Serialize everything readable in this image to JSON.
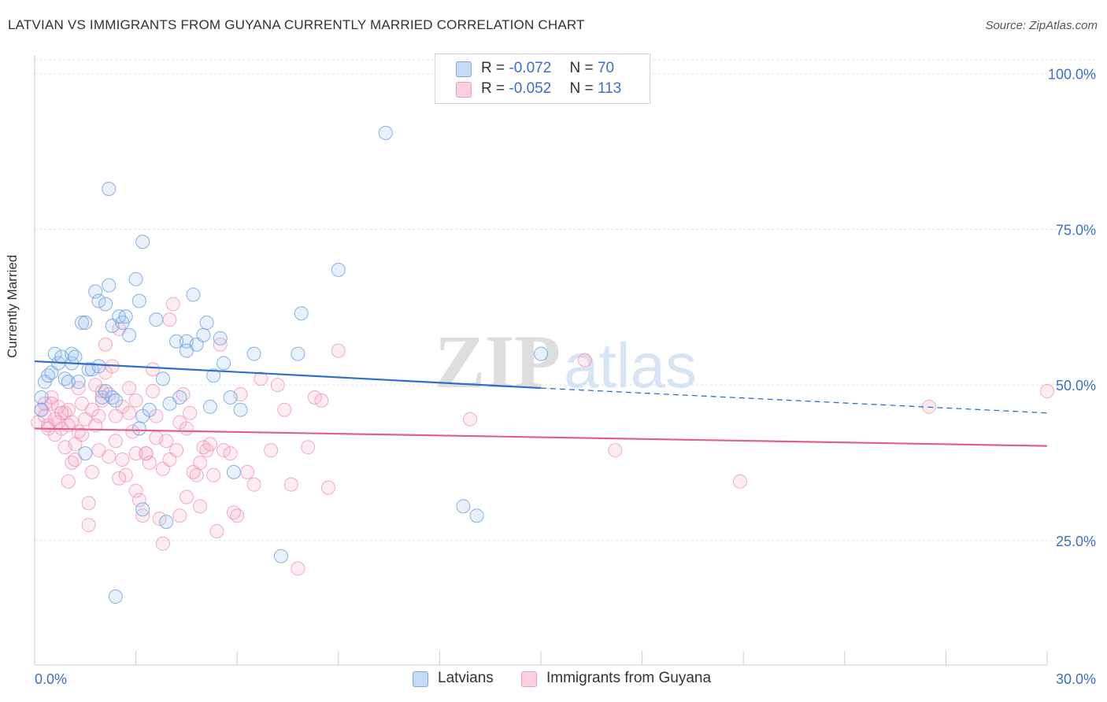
{
  "title": "LATVIAN VS IMMIGRANTS FROM GUYANA CURRENTLY MARRIED CORRELATION CHART",
  "source": "Source: ZipAtlas.com",
  "watermark": {
    "zip": "ZIP",
    "atlas": "atlas"
  },
  "legend": {
    "r_label": "R =",
    "n_label": "N =",
    "rows": [
      {
        "r": "-0.072",
        "n": "70",
        "color": "#a9c8ef"
      },
      {
        "r": "-0.052",
        "n": "113",
        "color": "#f7b8cc"
      }
    ]
  },
  "bottom_legend": {
    "latvians": "Latvians",
    "guyana": "Immigrants from Guyana"
  },
  "chart_data": {
    "type": "scatter",
    "title": "LATVIAN VS IMMIGRANTS FROM GUYANA CURRENTLY MARRIED CORRELATION CHART",
    "xlabel": "",
    "ylabel": "Currently Married",
    "xlim": [
      0,
      30
    ],
    "ylim": [
      5,
      103
    ],
    "x_tick_labels": [
      "0.0%",
      "30.0%"
    ],
    "y_tick_labels": [
      "25.0%",
      "50.0%",
      "75.0%",
      "100.0%"
    ],
    "y_ticks": [
      25,
      50,
      75,
      100
    ],
    "grid": true,
    "colors": {
      "latvians": "#6a9fe0",
      "guyana": "#f08fb0",
      "latvians_line": "#2f6fcb",
      "guyana_line": "#e0608a"
    },
    "series": [
      {
        "name": "Latvians",
        "trend": {
          "x0": 0,
          "y0": 53.8,
          "x1": 15,
          "y1": 49.5,
          "dash_x1": 30,
          "dash_y1": 45.5
        },
        "points": [
          [
            0.2,
            48.0
          ],
          [
            0.3,
            50.5
          ],
          [
            0.4,
            51.5
          ],
          [
            0.5,
            52.0
          ],
          [
            0.6,
            55.0
          ],
          [
            0.7,
            53.5
          ],
          [
            0.8,
            54.5
          ],
          [
            0.9,
            51.0
          ],
          [
            1.0,
            50.5
          ],
          [
            1.1,
            53.5
          ],
          [
            1.1,
            55.0
          ],
          [
            1.2,
            54.5
          ],
          [
            1.3,
            50.5
          ],
          [
            1.4,
            60.0
          ],
          [
            1.5,
            60.0
          ],
          [
            1.6,
            52.5
          ],
          [
            1.7,
            52.5
          ],
          [
            1.8,
            65.0
          ],
          [
            1.9,
            63.5
          ],
          [
            1.9,
            53.0
          ],
          [
            2.0,
            48.0
          ],
          [
            2.1,
            49.0
          ],
          [
            2.1,
            63.0
          ],
          [
            2.2,
            66.0
          ],
          [
            2.3,
            59.5
          ],
          [
            2.3,
            48.0
          ],
          [
            2.4,
            47.5
          ],
          [
            2.5,
            61.0
          ],
          [
            2.6,
            60.0
          ],
          [
            2.7,
            61.0
          ],
          [
            2.8,
            58.0
          ],
          [
            3.0,
            67.0
          ],
          [
            3.1,
            63.5
          ],
          [
            3.2,
            45.0
          ],
          [
            3.2,
            73.0
          ],
          [
            3.4,
            46.0
          ],
          [
            3.6,
            60.5
          ],
          [
            3.8,
            51.0
          ],
          [
            3.9,
            28.0
          ],
          [
            4.0,
            47.0
          ],
          [
            4.2,
            57.0
          ],
          [
            4.3,
            48.0
          ],
          [
            4.5,
            57.0
          ],
          [
            4.7,
            64.5
          ],
          [
            4.8,
            56.5
          ],
          [
            5.0,
            58.0
          ],
          [
            5.1,
            60.0
          ],
          [
            5.2,
            46.5
          ],
          [
            5.3,
            51.5
          ],
          [
            5.5,
            57.5
          ],
          [
            5.6,
            53.5
          ],
          [
            5.8,
            48.0
          ],
          [
            5.9,
            36.0
          ],
          [
            6.1,
            46.0
          ],
          [
            6.5,
            55.0
          ],
          [
            7.3,
            22.5
          ],
          [
            7.8,
            55.0
          ],
          [
            7.9,
            61.5
          ],
          [
            9.0,
            68.5
          ],
          [
            10.4,
            90.5
          ],
          [
            12.7,
            30.5
          ],
          [
            13.1,
            29.0
          ],
          [
            15.0,
            55.0
          ],
          [
            2.2,
            81.5
          ],
          [
            2.4,
            16.0
          ],
          [
            3.1,
            43.0
          ],
          [
            1.5,
            39.0
          ],
          [
            0.2,
            46.0
          ],
          [
            3.2,
            30.0
          ],
          [
            4.5,
            55.5
          ]
        ]
      },
      {
        "name": "Immigrants from Guyana",
        "trend": {
          "x0": 0,
          "y0": 43.0,
          "x1": 30,
          "y1": 40.2
        },
        "points": [
          [
            0.1,
            44.0
          ],
          [
            0.2,
            46.0
          ],
          [
            0.3,
            45.0
          ],
          [
            0.4,
            43.5
          ],
          [
            0.5,
            48.0
          ],
          [
            0.6,
            44.5
          ],
          [
            0.7,
            44.0
          ],
          [
            0.8,
            43.0
          ],
          [
            0.9,
            45.5
          ],
          [
            1.0,
            46.0
          ],
          [
            1.0,
            34.5
          ],
          [
            1.1,
            37.5
          ],
          [
            1.2,
            40.5
          ],
          [
            1.3,
            42.5
          ],
          [
            1.4,
            47.0
          ],
          [
            1.5,
            44.5
          ],
          [
            1.6,
            31.0
          ],
          [
            1.6,
            27.5
          ],
          [
            1.7,
            36.0
          ],
          [
            1.8,
            43.5
          ],
          [
            1.9,
            39.5
          ],
          [
            2.0,
            49.0
          ],
          [
            2.1,
            52.0
          ],
          [
            2.2,
            48.5
          ],
          [
            2.3,
            53.0
          ],
          [
            2.4,
            41.0
          ],
          [
            2.5,
            35.0
          ],
          [
            2.6,
            38.0
          ],
          [
            2.7,
            35.5
          ],
          [
            2.8,
            49.5
          ],
          [
            2.9,
            42.5
          ],
          [
            3.0,
            47.5
          ],
          [
            3.1,
            31.5
          ],
          [
            3.2,
            29.0
          ],
          [
            3.3,
            39.0
          ],
          [
            3.4,
            37.5
          ],
          [
            3.5,
            52.5
          ],
          [
            3.6,
            45.0
          ],
          [
            3.7,
            28.5
          ],
          [
            3.8,
            36.5
          ],
          [
            3.9,
            41.0
          ],
          [
            4.0,
            38.0
          ],
          [
            4.1,
            63.0
          ],
          [
            4.2,
            39.5
          ],
          [
            4.3,
            29.0
          ],
          [
            4.4,
            48.5
          ],
          [
            4.5,
            32.0
          ],
          [
            4.6,
            45.5
          ],
          [
            4.8,
            35.5
          ],
          [
            4.9,
            37.5
          ],
          [
            5.0,
            40.0
          ],
          [
            5.1,
            39.5
          ],
          [
            5.3,
            35.5
          ],
          [
            5.4,
            26.5
          ],
          [
            5.5,
            56.5
          ],
          [
            5.6,
            39.5
          ],
          [
            5.8,
            39.0
          ],
          [
            5.9,
            29.5
          ],
          [
            6.1,
            48.5
          ],
          [
            6.3,
            36.0
          ],
          [
            6.5,
            34.0
          ],
          [
            6.7,
            51.0
          ],
          [
            7.0,
            39.5
          ],
          [
            7.2,
            50.0
          ],
          [
            7.4,
            46.0
          ],
          [
            7.6,
            34.0
          ],
          [
            7.8,
            20.5
          ],
          [
            8.1,
            40.0
          ],
          [
            8.3,
            48.0
          ],
          [
            8.5,
            47.5
          ],
          [
            8.7,
            33.5
          ],
          [
            9.0,
            55.5
          ],
          [
            12.9,
            44.5
          ],
          [
            16.3,
            54.0
          ],
          [
            17.2,
            39.5
          ],
          [
            20.9,
            34.5
          ],
          [
            26.5,
            46.5
          ],
          [
            30.0,
            49.0
          ],
          [
            0.3,
            47.0
          ],
          [
            0.6,
            42.0
          ],
          [
            1.2,
            38.0
          ],
          [
            1.9,
            45.0
          ],
          [
            2.6,
            46.5
          ],
          [
            3.0,
            33.0
          ],
          [
            3.5,
            49.0
          ],
          [
            4.3,
            44.0
          ],
          [
            4.7,
            36.0
          ],
          [
            5.2,
            40.5
          ],
          [
            0.9,
            40.0
          ],
          [
            1.4,
            42.0
          ],
          [
            2.0,
            47.5
          ],
          [
            2.4,
            45.0
          ],
          [
            2.8,
            45.5
          ],
          [
            3.3,
            39.0
          ],
          [
            4.0,
            60.5
          ],
          [
            4.5,
            43.0
          ],
          [
            6.0,
            29.0
          ],
          [
            3.8,
            24.5
          ],
          [
            1.8,
            50.0
          ],
          [
            2.2,
            38.5
          ],
          [
            0.5,
            47.0
          ],
          [
            0.8,
            45.5
          ],
          [
            1.1,
            44.0
          ],
          [
            1.7,
            46.0
          ],
          [
            3.6,
            41.5
          ],
          [
            4.9,
            30.5
          ],
          [
            2.5,
            59.0
          ],
          [
            3.0,
            39.0
          ],
          [
            1.3,
            49.5
          ],
          [
            2.1,
            56.5
          ],
          [
            0.4,
            43.0
          ],
          [
            0.7,
            46.5
          ],
          [
            1.0,
            43.5
          ]
        ]
      }
    ]
  }
}
